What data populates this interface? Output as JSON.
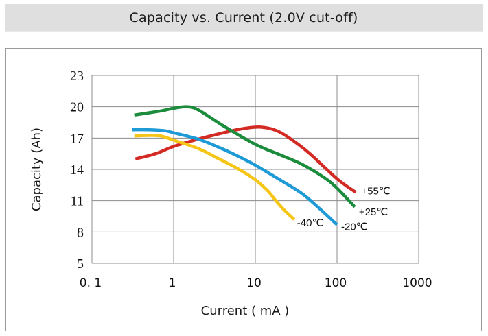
{
  "chart_data": {
    "type": "line",
    "title": "Capacity vs. Current (2.0V cut-off)",
    "xlabel": "Current ( mA )",
    "ylabel": "Capacity (Ah)",
    "xscale": "log",
    "xlim": [
      0.1,
      1000
    ],
    "ylim": [
      5,
      23
    ],
    "xticks": [
      0.1,
      1,
      10,
      100,
      1000
    ],
    "xtick_labels": [
      "0. 1",
      "1",
      "10",
      "100",
      "1000"
    ],
    "yticks": [
      5,
      8,
      11,
      14,
      17,
      20,
      23
    ],
    "ytick_labels": [
      "5",
      "8",
      "11",
      "14",
      "17",
      "20",
      "23"
    ],
    "grid": true,
    "legend": "inline-end-labels",
    "series": [
      {
        "name": "+55℃",
        "color": "#d42a24",
        "x": [
          0.34,
          0.6,
          1.0,
          2.0,
          3.6,
          6.5,
          11,
          17,
          25,
          45,
          100,
          170
        ],
        "y": [
          15.0,
          15.5,
          16.2,
          16.9,
          17.4,
          17.85,
          18.05,
          17.8,
          17.1,
          15.6,
          13.1,
          11.8
        ]
      },
      {
        "name": "+25℃",
        "color": "#1a8c3c",
        "x": [
          0.33,
          0.7,
          1.0,
          1.45,
          2.0,
          4.0,
          10,
          20,
          37,
          70,
          100,
          165
        ],
        "y": [
          19.2,
          19.6,
          19.85,
          20.0,
          19.7,
          18.2,
          16.4,
          15.4,
          14.5,
          13.2,
          12.2,
          10.4
        ]
      },
      {
        "name": "-20℃",
        "color": "#1e9ad6",
        "x": [
          0.31,
          0.5,
          0.78,
          1.0,
          2.0,
          3.6,
          6.0,
          10,
          20,
          37,
          60,
          100
        ],
        "y": [
          17.8,
          17.8,
          17.7,
          17.5,
          16.9,
          16.1,
          15.3,
          14.4,
          13.0,
          11.7,
          10.3,
          8.7
        ]
      },
      {
        "name": "-40℃",
        "color": "#f5c518",
        "x": [
          0.33,
          0.5,
          0.7,
          1.0,
          2.0,
          3.6,
          6.0,
          10,
          14,
          17,
          22,
          30
        ],
        "y": [
          17.2,
          17.25,
          17.2,
          16.8,
          16.0,
          15.0,
          14.1,
          13.0,
          12.0,
          11.2,
          10.2,
          9.2
        ]
      }
    ]
  }
}
